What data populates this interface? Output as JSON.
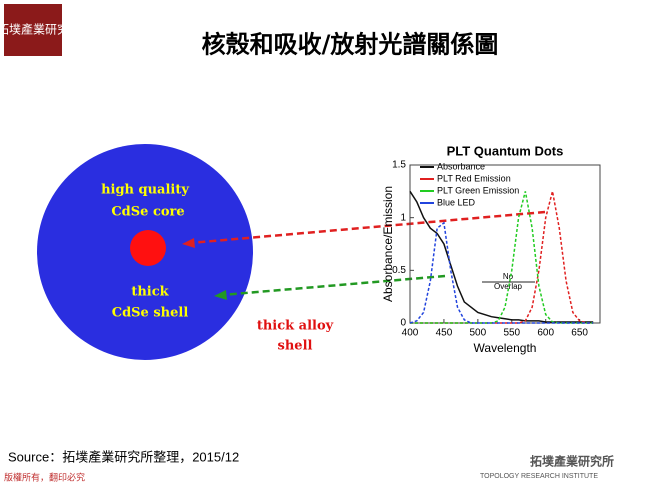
{
  "header": {
    "title": "核殼和吸收/放射光譜關係圖",
    "logo": "拓墣產業研究"
  },
  "diagram": {
    "core_label": [
      "high quality",
      "CdSe core"
    ],
    "shell_label": [
      "thick",
      "CdSe shell"
    ],
    "alloy_label": [
      "thick alloy",
      "shell"
    ]
  },
  "chart_data": {
    "type": "line",
    "title": "PLT Quantum Dots",
    "x_label": "Wavelength",
    "y_label": "Absorbance/Emission",
    "annotation": [
      "No",
      "Overlap"
    ],
    "xlim": [
      400,
      680
    ],
    "xticks": [
      400,
      450,
      500,
      550,
      600,
      650
    ],
    "ylim": [
      0,
      1.5
    ],
    "yticks": [
      0,
      0.5,
      1,
      1.5
    ],
    "x": [
      400,
      410,
      420,
      430,
      440,
      450,
      460,
      470,
      480,
      490,
      500,
      510,
      520,
      530,
      540,
      550,
      560,
      570,
      580,
      590,
      600,
      610,
      620,
      630,
      640,
      650,
      660,
      670
    ],
    "series": [
      {
        "name": "Absorbance",
        "color": "#111111",
        "values": [
          1.25,
          1.15,
          1.0,
          0.9,
          0.85,
          0.75,
          0.55,
          0.35,
          0.2,
          0.15,
          0.1,
          0.08,
          0.06,
          0.05,
          0.04,
          0.03,
          0.03,
          0.02,
          0.02,
          0.02,
          0.01,
          0.01,
          0.01,
          0.01,
          0.01,
          0.01,
          0.01,
          0.01
        ]
      },
      {
        "name": "PLT Red Emission",
        "color": "#e02020",
        "values": [
          0,
          0,
          0,
          0,
          0,
          0,
          0,
          0,
          0,
          0,
          0,
          0,
          0,
          0,
          0,
          0,
          0,
          0.02,
          0.15,
          0.5,
          1.0,
          1.25,
          0.9,
          0.4,
          0.1,
          0.02,
          0,
          0
        ]
      },
      {
        "name": "PLT Green Emission",
        "color": "#22cc22",
        "values": [
          0,
          0,
          0,
          0,
          0,
          0,
          0,
          0,
          0,
          0,
          0,
          0,
          0,
          0.02,
          0.15,
          0.5,
          1.0,
          1.25,
          0.9,
          0.35,
          0.08,
          0.01,
          0,
          0,
          0,
          0,
          0,
          0
        ]
      },
      {
        "name": "Blue LED",
        "color": "#2244dd",
        "values": [
          0,
          0.02,
          0.1,
          0.4,
          0.9,
          0.95,
          0.5,
          0.15,
          0.03,
          0,
          0,
          0,
          0,
          0,
          0,
          0,
          0,
          0,
          0,
          0,
          0,
          0,
          0,
          0,
          0,
          0,
          0,
          0
        ]
      }
    ]
  },
  "footer": {
    "source": "Source：拓墣產業研究所整理，2015/12",
    "copyright": "版權所有，翻印必究",
    "brand": "拓墣產業研究所",
    "brand_sub": "TOPOLOGY RESEARCH INSTITUTE"
  }
}
